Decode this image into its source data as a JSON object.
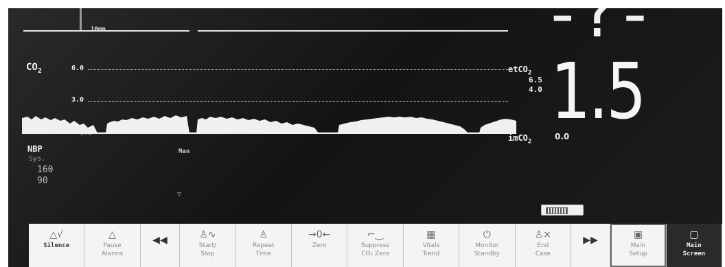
{
  "waveform": {
    "scale_top": "10mm",
    "co2_label": "CO",
    "co2_sub": "2",
    "gridlines": [
      {
        "label": "6.0",
        "value": 6.0
      },
      {
        "label": "3.0",
        "value": 3.0
      },
      {
        "label": "0.0",
        "value": 0.0
      }
    ]
  },
  "etco2": {
    "label": "etCO",
    "sub": "2",
    "alarm_high": "6.5",
    "alarm_low": "4.0",
    "value": "1.5",
    "top_value": "-?-"
  },
  "imco2": {
    "label": "imCO",
    "sub": "2",
    "value": "0.0"
  },
  "nbp": {
    "label": "NBP",
    "mode": "Man",
    "sys_label": "Sys.",
    "sys_value": "160",
    "dia_value": "90"
  },
  "softkeys": [
    {
      "id": "silence",
      "icon": "△√",
      "label": "Silence"
    },
    {
      "id": "pause-alarms",
      "icon": "△",
      "label": "Pause\nAlarms"
    },
    {
      "id": "rewind",
      "icon": "◀◀",
      "label": ""
    },
    {
      "id": "start-stop",
      "icon": "♙∿",
      "label": "Start/\nStop"
    },
    {
      "id": "repeat-time",
      "icon": "♙",
      "label": "Repeat\nTime"
    },
    {
      "id": "zero",
      "icon": "→0←",
      "label": "Zero"
    },
    {
      "id": "suppress-co2-zero",
      "icon": "⌐‿",
      "label": "Suppress\nCO₂ Zero"
    },
    {
      "id": "vitals-trend",
      "icon": "▦",
      "label": "Vitals\nTrend"
    },
    {
      "id": "monitor-standby",
      "icon": "⏻",
      "label": "Monitor\nStandby"
    },
    {
      "id": "end-case",
      "icon": "♙×",
      "label": "End\nCase"
    },
    {
      "id": "forward",
      "icon": "▶▶",
      "label": ""
    },
    {
      "id": "main-setup",
      "icon": "▣",
      "label": "Main\nSetup"
    },
    {
      "id": "main-screen",
      "icon": "▢",
      "label": "Main\nScreen"
    }
  ],
  "colors": {
    "screen_bg": "#1a1a1a",
    "text": "#f0f0f0",
    "softkey_bg": "#f4f4f4"
  }
}
